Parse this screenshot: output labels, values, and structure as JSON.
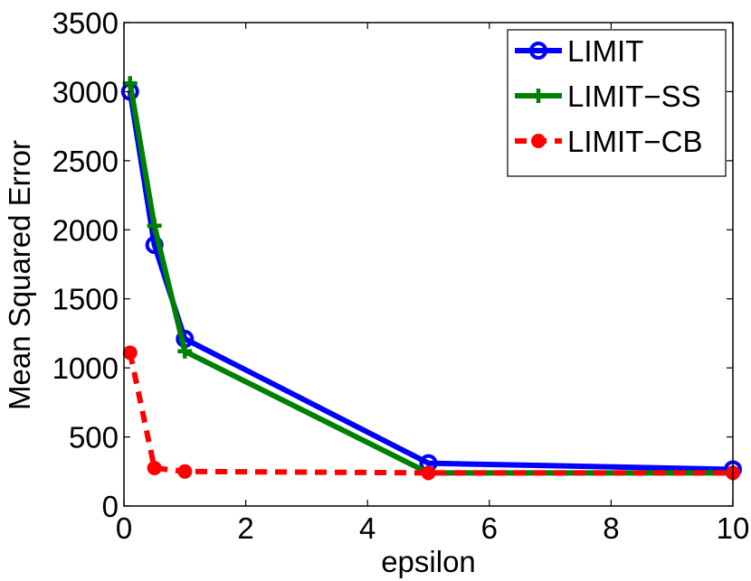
{
  "chart_data": {
    "type": "line",
    "title": "",
    "xlabel": "epsilon",
    "ylabel": "Mean Squared Error",
    "xlim": [
      0,
      10
    ],
    "ylim": [
      0,
      3500
    ],
    "xticks": [
      0,
      2,
      4,
      6,
      8,
      10
    ],
    "yticks": [
      0,
      500,
      1000,
      1500,
      2000,
      2500,
      3000,
      3500
    ],
    "grid": false,
    "legend_position": "top-right",
    "series": [
      {
        "name": "LIMIT",
        "color": "#0000ff",
        "line_style": "solid",
        "marker": "circle-open",
        "x": [
          0.1,
          0.5,
          1,
          5,
          10
        ],
        "y": [
          3000,
          1890,
          1210,
          310,
          265
        ]
      },
      {
        "name": "LIMIT−SS",
        "color": "#008000",
        "line_style": "solid",
        "marker": "plus",
        "x": [
          0.1,
          0.5,
          1,
          5,
          10
        ],
        "y": [
          3060,
          2030,
          1120,
          240,
          240
        ]
      },
      {
        "name": "LIMIT−CB",
        "color": "#ff0000",
        "line_style": "dashed",
        "marker": "dot",
        "x": [
          0.1,
          0.5,
          1,
          5,
          10
        ],
        "y": [
          1110,
          275,
          250,
          240,
          240
        ]
      }
    ]
  }
}
